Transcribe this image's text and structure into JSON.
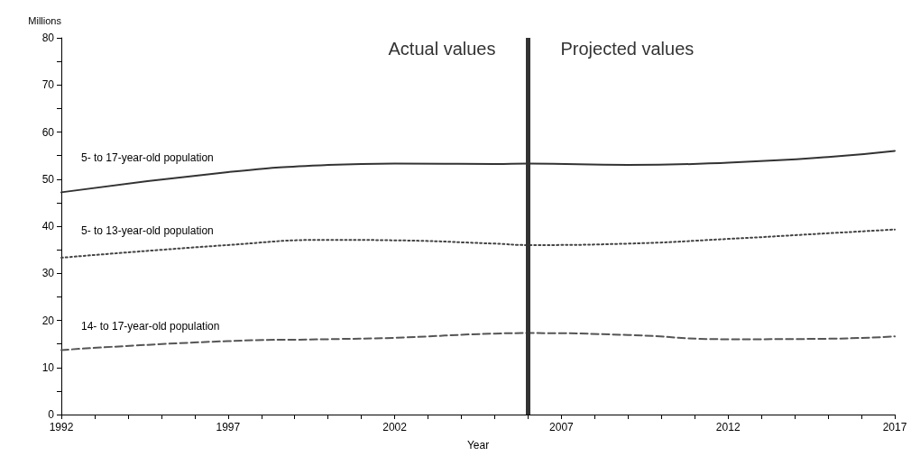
{
  "chart_data": {
    "type": "line",
    "xlabel": "Year",
    "ylabel": "Millions",
    "x": [
      1992,
      1997,
      2000,
      2002,
      2005,
      2006,
      2009,
      2012,
      2015,
      2017
    ],
    "series": [
      {
        "name": "5- to 17-year-old population",
        "color": "#333333",
        "line_style": "solid",
        "values": [
          47.2,
          51.5,
          53,
          53.3,
          53.2,
          53.3,
          53,
          53.5,
          54.7,
          56
        ]
      },
      {
        "name": "5- to 13-year-old population",
        "color": "#444444",
        "line_style": "dotted",
        "values": [
          33.3,
          36,
          37.1,
          37,
          36.3,
          36,
          36.3,
          37.3,
          38.5,
          39.3
        ]
      },
      {
        "name": "14- to 17-year-old population",
        "color": "#555555",
        "line_style": "dashed",
        "values": [
          13.7,
          15.6,
          16,
          16.3,
          17.2,
          17.3,
          16.9,
          16,
          16.1,
          16.6
        ]
      }
    ],
    "xlim": [
      1992,
      2017
    ],
    "xticks": [
      1992,
      {
        "value": 1993,
        "label": null
      },
      {
        "value": 1994,
        "label": null
      },
      {
        "value": 1995,
        "label": null
      },
      {
        "value": 1996,
        "label": null
      },
      1997,
      {
        "value": 1998,
        "label": null
      },
      {
        "value": 1999,
        "label": null
      },
      {
        "value": 2000,
        "label": null
      },
      {
        "value": 2001,
        "label": null
      },
      2002,
      {
        "value": 2003,
        "label": null
      },
      {
        "value": 2004,
        "label": null
      },
      {
        "value": 2005,
        "label": null
      },
      {
        "value": 2006,
        "label": null
      },
      2007,
      {
        "value": 2008,
        "label": null
      },
      {
        "value": 2009,
        "label": null
      },
      {
        "value": 2010,
        "label": null
      },
      {
        "value": 2011,
        "label": null
      },
      2012,
      {
        "value": 2013,
        "label": null
      },
      {
        "value": 2014,
        "label": null
      },
      {
        "value": 2015,
        "label": null
      },
      {
        "value": 2016,
        "label": null
      },
      2017
    ],
    "ylim": [
      0,
      80
    ],
    "yticks": [
      0,
      {
        "value": 5,
        "label": null
      },
      10,
      {
        "value": 15,
        "label": null
      },
      20,
      {
        "value": 25,
        "label": null
      },
      30,
      {
        "value": 35,
        "label": null
      },
      40,
      {
        "value": 45,
        "label": null
      },
      50,
      {
        "value": 55,
        "label": null
      },
      60,
      {
        "value": 65,
        "label": null
      },
      70,
      {
        "value": 75,
        "label": null
      },
      80
    ],
    "ref_lines": [
      {
        "axis": "x",
        "value": 2006,
        "color": "#333333"
      }
    ],
    "annotations": [
      "Actual values",
      "Projected values"
    ],
    "grid": false,
    "legend": false,
    "marker": "none"
  }
}
